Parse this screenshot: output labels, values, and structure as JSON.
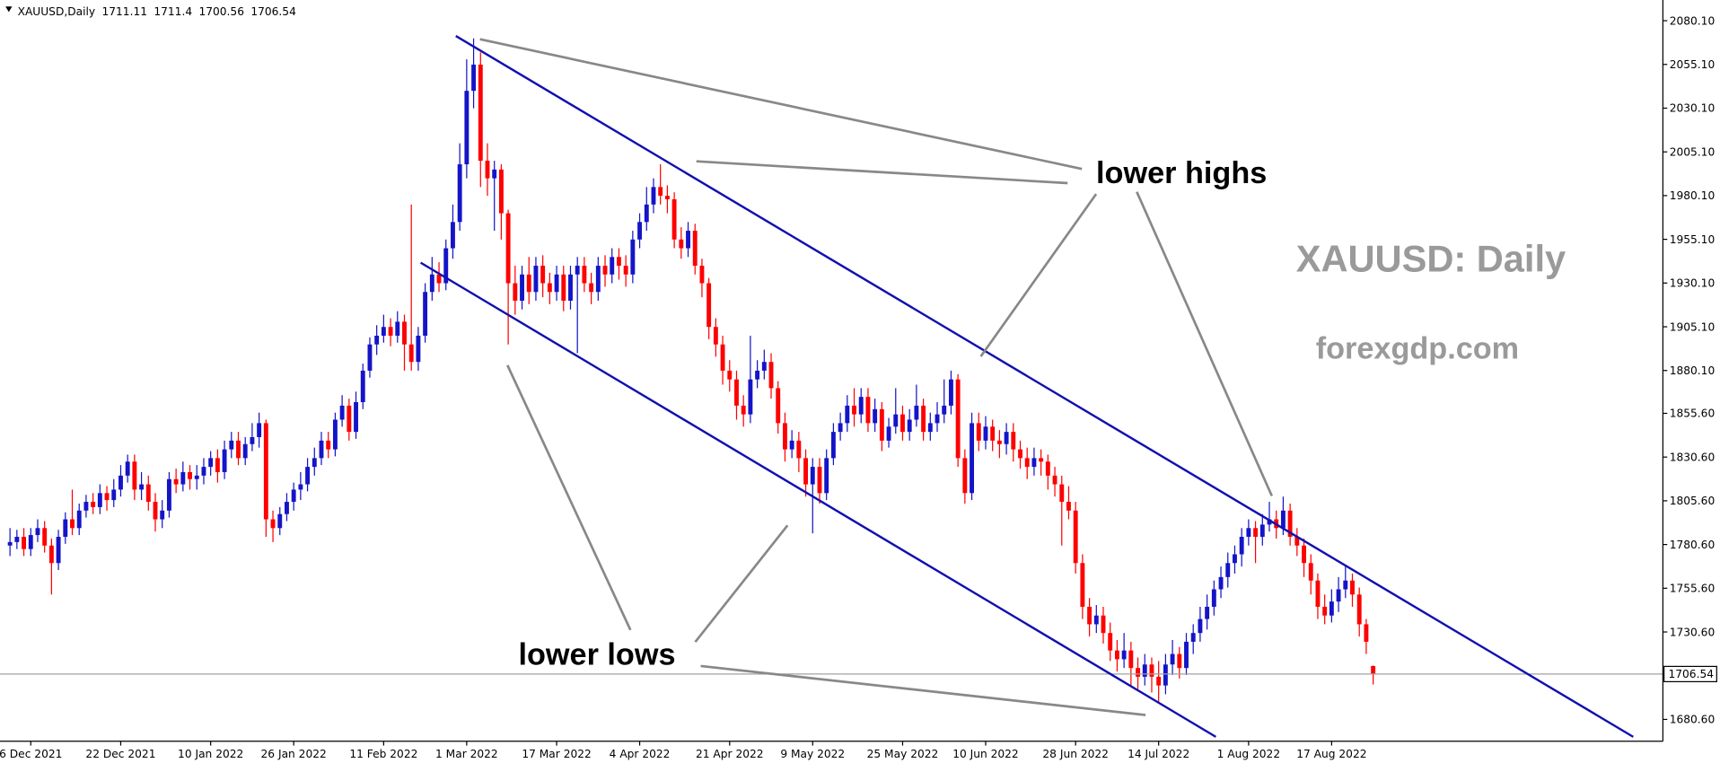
{
  "chart_data": {
    "type": "candlestick",
    "symbol": "XAUUSD,Daily",
    "annotations": [
      "lower highs",
      "lower lows",
      "XAUUSD: Daily",
      "forexgdp.com"
    ],
    "colors": {
      "up": "#1414c8",
      "down": "#ff0000",
      "channel": "#1010b0",
      "guide": "#888888"
    },
    "grid": false,
    "ylim": [
      1668.14,
      2091.94
    ],
    "yticks": [
      {
        "value": 2080.1,
        "label": "2080.10"
      },
      {
        "value": 2055.1,
        "label": "2055.10"
      },
      {
        "value": 2030.1,
        "label": "2030.10"
      },
      {
        "value": 2005.1,
        "label": "2005.10"
      },
      {
        "value": 1980.1,
        "label": "1980.10"
      },
      {
        "value": 1955.1,
        "label": "1955.10"
      },
      {
        "value": 1930.1,
        "label": "1930.10"
      },
      {
        "value": 1905.1,
        "label": "1905.10"
      },
      {
        "value": 1880.1,
        "label": "1880.10"
      },
      {
        "value": 1855.6,
        "label": "1855.60"
      },
      {
        "value": 1830.6,
        "label": "1830.60"
      },
      {
        "value": 1805.6,
        "label": "1805.60"
      },
      {
        "value": 1780.6,
        "label": "1780.60"
      },
      {
        "value": 1755.6,
        "label": "1755.60"
      },
      {
        "value": 1730.6,
        "label": "1730.60"
      },
      {
        "value": 1680.6,
        "label": "1680.60"
      }
    ],
    "categories": [
      null,
      null,
      null,
      "6 Dec 2021",
      null,
      null,
      null,
      null,
      null,
      null,
      null,
      null,
      null,
      null,
      null,
      null,
      "22 Dec 2021",
      null,
      null,
      null,
      null,
      null,
      null,
      null,
      null,
      null,
      null,
      null,
      null,
      "10 Jan 2022",
      null,
      null,
      null,
      null,
      null,
      null,
      null,
      null,
      null,
      null,
      null,
      "26 Jan 2022",
      null,
      null,
      null,
      null,
      null,
      null,
      null,
      null,
      null,
      null,
      null,
      null,
      "11 Feb 2022",
      null,
      null,
      null,
      null,
      null,
      null,
      null,
      null,
      null,
      null,
      null,
      "1 Mar 2022",
      null,
      null,
      null,
      null,
      null,
      null,
      null,
      null,
      null,
      null,
      null,
      null,
      "17 Mar 2022",
      null,
      null,
      null,
      null,
      null,
      null,
      null,
      null,
      null,
      null,
      null,
      "4 Apr 2022",
      null,
      null,
      null,
      null,
      null,
      null,
      null,
      null,
      null,
      null,
      null,
      null,
      "21 Apr 2022",
      null,
      null,
      null,
      null,
      null,
      null,
      null,
      null,
      null,
      null,
      null,
      "9 May 2022",
      null,
      null,
      null,
      null,
      null,
      null,
      null,
      null,
      null,
      null,
      null,
      null,
      "25 May 2022",
      null,
      null,
      null,
      null,
      null,
      null,
      null,
      null,
      null,
      null,
      null,
      "10 Jun 2022",
      null,
      null,
      null,
      null,
      null,
      null,
      null,
      null,
      null,
      null,
      null,
      null,
      "28 Jun 2022",
      null,
      null,
      null,
      null,
      null,
      null,
      null,
      null,
      null,
      null,
      null,
      "14 Jul 2022",
      null,
      null,
      null,
      null,
      null,
      null,
      null,
      null,
      null,
      null,
      null,
      null,
      "1 Aug 2022",
      null,
      null,
      null,
      null,
      null,
      null,
      null,
      null,
      null,
      null,
      null,
      "17 Aug 2022",
      null,
      null,
      null,
      null,
      null,
      null
    ],
    "ohlc": [
      [
        1780,
        1790,
        1774,
        1782
      ],
      [
        1782,
        1789,
        1778,
        1785
      ],
      [
        1785,
        1790,
        1774,
        1778
      ],
      [
        1778,
        1790,
        1774,
        1786
      ],
      [
        1786,
        1795,
        1782,
        1790
      ],
      [
        1790,
        1794,
        1776,
        1780
      ],
      [
        1780,
        1784,
        1752,
        1770
      ],
      [
        1770,
        1789,
        1766,
        1785
      ],
      [
        1785,
        1799,
        1781,
        1795
      ],
      [
        1795,
        1812,
        1786,
        1790
      ],
      [
        1790,
        1804,
        1786,
        1800
      ],
      [
        1800,
        1809,
        1796,
        1805
      ],
      [
        1805,
        1810,
        1798,
        1802
      ],
      [
        1802,
        1815,
        1798,
        1810
      ],
      [
        1810,
        1814,
        1800,
        1806
      ],
      [
        1806,
        1818,
        1802,
        1812
      ],
      [
        1812,
        1826,
        1808,
        1820
      ],
      [
        1820,
        1832,
        1816,
        1828
      ],
      [
        1828,
        1832,
        1806,
        1812
      ],
      [
        1812,
        1822,
        1806,
        1815
      ],
      [
        1815,
        1820,
        1800,
        1805
      ],
      [
        1805,
        1810,
        1788,
        1795
      ],
      [
        1795,
        1806,
        1790,
        1800
      ],
      [
        1800,
        1822,
        1796,
        1818
      ],
      [
        1818,
        1824,
        1810,
        1815
      ],
      [
        1815,
        1828,
        1811,
        1822
      ],
      [
        1822,
        1826,
        1812,
        1818
      ],
      [
        1818,
        1826,
        1812,
        1820
      ],
      [
        1820,
        1830,
        1815,
        1825
      ],
      [
        1825,
        1834,
        1820,
        1830
      ],
      [
        1830,
        1835,
        1816,
        1822
      ],
      [
        1822,
        1840,
        1818,
        1835
      ],
      [
        1835,
        1845,
        1830,
        1840
      ],
      [
        1840,
        1845,
        1826,
        1830
      ],
      [
        1830,
        1842,
        1826,
        1838
      ],
      [
        1838,
        1850,
        1834,
        1842
      ],
      [
        1842,
        1856,
        1836,
        1850
      ],
      [
        1850,
        1852,
        1785,
        1795
      ],
      [
        1795,
        1800,
        1782,
        1790
      ],
      [
        1790,
        1802,
        1786,
        1798
      ],
      [
        1798,
        1810,
        1794,
        1805
      ],
      [
        1805,
        1816,
        1800,
        1812
      ],
      [
        1812,
        1822,
        1806,
        1815
      ],
      [
        1815,
        1830,
        1811,
        1825
      ],
      [
        1825,
        1836,
        1820,
        1830
      ],
      [
        1830,
        1845,
        1826,
        1840
      ],
      [
        1840,
        1845,
        1830,
        1835
      ],
      [
        1835,
        1856,
        1831,
        1852
      ],
      [
        1852,
        1866,
        1848,
        1860
      ],
      [
        1860,
        1864,
        1840,
        1845
      ],
      [
        1845,
        1868,
        1841,
        1862
      ],
      [
        1862,
        1884,
        1858,
        1880
      ],
      [
        1880,
        1899,
        1876,
        1895
      ],
      [
        1895,
        1906,
        1889,
        1900
      ],
      [
        1900,
        1912,
        1896,
        1905
      ],
      [
        1905,
        1910,
        1894,
        1900
      ],
      [
        1900,
        1914,
        1896,
        1908
      ],
      [
        1908,
        1912,
        1880,
        1895
      ],
      [
        1895,
        1975,
        1880,
        1885
      ],
      [
        1885,
        1905,
        1880,
        1900
      ],
      [
        1900,
        1930,
        1896,
        1925
      ],
      [
        1925,
        1945,
        1920,
        1935
      ],
      [
        1935,
        1942,
        1925,
        1930
      ],
      [
        1930,
        1955,
        1926,
        1950
      ],
      [
        1950,
        1975,
        1944,
        1965
      ],
      [
        1965,
        2010,
        1960,
        1998
      ],
      [
        1998,
        2058,
        1990,
        2040
      ],
      [
        2040,
        2070,
        2030,
        2055
      ],
      [
        2055,
        2062,
        1985,
        2000
      ],
      [
        2000,
        2010,
        1980,
        1990
      ],
      [
        1990,
        2000,
        1960,
        1995
      ],
      [
        1995,
        1998,
        1955,
        1970
      ],
      [
        1970,
        1972,
        1895,
        1930
      ],
      [
        1930,
        1940,
        1912,
        1920
      ],
      [
        1920,
        1940,
        1915,
        1935
      ],
      [
        1935,
        1945,
        1918,
        1925
      ],
      [
        1925,
        1945,
        1920,
        1940
      ],
      [
        1940,
        1946,
        1922,
        1930
      ],
      [
        1930,
        1936,
        1918,
        1925
      ],
      [
        1925,
        1940,
        1920,
        1935
      ],
      [
        1935,
        1940,
        1914,
        1920
      ],
      [
        1920,
        1940,
        1915,
        1935
      ],
      [
        1935,
        1945,
        1890,
        1940
      ],
      [
        1940,
        1945,
        1925,
        1930
      ],
      [
        1930,
        1936,
        1918,
        1925
      ],
      [
        1925,
        1945,
        1920,
        1940
      ],
      [
        1940,
        1946,
        1928,
        1935
      ],
      [
        1935,
        1950,
        1930,
        1945
      ],
      [
        1945,
        1950,
        1932,
        1940
      ],
      [
        1940,
        1946,
        1928,
        1935
      ],
      [
        1935,
        1960,
        1930,
        1955
      ],
      [
        1955,
        1970,
        1950,
        1965
      ],
      [
        1965,
        1985,
        1960,
        1975
      ],
      [
        1975,
        1990,
        1970,
        1985
      ],
      [
        1985,
        1998,
        1975,
        1980
      ],
      [
        1980,
        1986,
        1970,
        1978
      ],
      [
        1978,
        1982,
        1950,
        1955
      ],
      [
        1955,
        1962,
        1944,
        1950
      ],
      [
        1950,
        1965,
        1945,
        1960
      ],
      [
        1960,
        1964,
        1935,
        1940
      ],
      [
        1940,
        1944,
        1922,
        1930
      ],
      [
        1930,
        1933,
        1898,
        1905
      ],
      [
        1905,
        1910,
        1888,
        1895
      ],
      [
        1895,
        1900,
        1872,
        1880
      ],
      [
        1880,
        1886,
        1868,
        1875
      ],
      [
        1875,
        1880,
        1852,
        1860
      ],
      [
        1860,
        1866,
        1848,
        1855
      ],
      [
        1855,
        1900,
        1850,
        1875
      ],
      [
        1875,
        1886,
        1870,
        1880
      ],
      [
        1880,
        1892,
        1875,
        1885
      ],
      [
        1885,
        1890,
        1864,
        1870
      ],
      [
        1870,
        1874,
        1844,
        1850
      ],
      [
        1850,
        1856,
        1828,
        1835
      ],
      [
        1835,
        1846,
        1830,
        1840
      ],
      [
        1840,
        1845,
        1822,
        1830
      ],
      [
        1830,
        1835,
        1808,
        1815
      ],
      [
        1815,
        1830,
        1787,
        1825
      ],
      [
        1825,
        1830,
        1804,
        1810
      ],
      [
        1810,
        1835,
        1806,
        1830
      ],
      [
        1830,
        1850,
        1826,
        1845
      ],
      [
        1845,
        1856,
        1840,
        1850
      ],
      [
        1850,
        1866,
        1845,
        1860
      ],
      [
        1860,
        1870,
        1848,
        1855
      ],
      [
        1855,
        1870,
        1850,
        1865
      ],
      [
        1865,
        1870,
        1845,
        1850
      ],
      [
        1850,
        1864,
        1845,
        1858
      ],
      [
        1858,
        1862,
        1834,
        1840
      ],
      [
        1840,
        1853,
        1836,
        1848
      ],
      [
        1848,
        1870,
        1844,
        1855
      ],
      [
        1855,
        1860,
        1840,
        1845
      ],
      [
        1845,
        1858,
        1840,
        1852
      ],
      [
        1852,
        1872,
        1848,
        1860
      ],
      [
        1860,
        1864,
        1840,
        1845
      ],
      [
        1845,
        1856,
        1840,
        1850
      ],
      [
        1850,
        1862,
        1845,
        1855
      ],
      [
        1855,
        1875,
        1850,
        1860
      ],
      [
        1860,
        1880,
        1855,
        1875
      ],
      [
        1875,
        1878,
        1825,
        1830
      ],
      [
        1830,
        1835,
        1804,
        1810
      ],
      [
        1810,
        1856,
        1806,
        1850
      ],
      [
        1850,
        1856,
        1834,
        1840
      ],
      [
        1840,
        1854,
        1835,
        1848
      ],
      [
        1848,
        1852,
        1834,
        1840
      ],
      [
        1840,
        1846,
        1830,
        1838
      ],
      [
        1838,
        1850,
        1832,
        1845
      ],
      [
        1845,
        1850,
        1828,
        1835
      ],
      [
        1835,
        1840,
        1824,
        1830
      ],
      [
        1830,
        1836,
        1818,
        1825
      ],
      [
        1825,
        1836,
        1820,
        1830
      ],
      [
        1830,
        1835,
        1820,
        1828
      ],
      [
        1828,
        1832,
        1812,
        1820
      ],
      [
        1820,
        1825,
        1808,
        1815
      ],
      [
        1815,
        1820,
        1780,
        1805
      ],
      [
        1805,
        1814,
        1795,
        1800
      ],
      [
        1800,
        1805,
        1764,
        1770
      ],
      [
        1770,
        1775,
        1738,
        1745
      ],
      [
        1745,
        1750,
        1728,
        1735
      ],
      [
        1735,
        1746,
        1730,
        1740
      ],
      [
        1740,
        1745,
        1724,
        1730
      ],
      [
        1730,
        1736,
        1714,
        1720
      ],
      [
        1720,
        1726,
        1708,
        1715
      ],
      [
        1715,
        1730,
        1710,
        1720
      ],
      [
        1720,
        1725,
        1700,
        1710
      ],
      [
        1710,
        1716,
        1698,
        1705
      ],
      [
        1705,
        1718,
        1700,
        1712
      ],
      [
        1712,
        1716,
        1696,
        1705
      ],
      [
        1705,
        1714,
        1690,
        1700
      ],
      [
        1700,
        1718,
        1695,
        1712
      ],
      [
        1712,
        1726,
        1706,
        1718
      ],
      [
        1718,
        1722,
        1704,
        1710
      ],
      [
        1710,
        1730,
        1706,
        1725
      ],
      [
        1725,
        1735,
        1718,
        1730
      ],
      [
        1730,
        1745,
        1725,
        1738
      ],
      [
        1738,
        1752,
        1732,
        1745
      ],
      [
        1745,
        1760,
        1740,
        1755
      ],
      [
        1755,
        1768,
        1750,
        1762
      ],
      [
        1762,
        1776,
        1756,
        1770
      ],
      [
        1770,
        1780,
        1764,
        1775
      ],
      [
        1775,
        1790,
        1768,
        1785
      ],
      [
        1785,
        1795,
        1780,
        1790
      ],
      [
        1790,
        1794,
        1770,
        1785
      ],
      [
        1785,
        1798,
        1780,
        1792
      ],
      [
        1792,
        1805,
        1788,
        1795
      ],
      [
        1795,
        1800,
        1784,
        1790
      ],
      [
        1790,
        1808,
        1786,
        1800
      ],
      [
        1800,
        1804,
        1780,
        1785
      ],
      [
        1785,
        1790,
        1774,
        1780
      ],
      [
        1780,
        1784,
        1762,
        1770
      ],
      [
        1770,
        1775,
        1752,
        1760
      ],
      [
        1760,
        1764,
        1738,
        1745
      ],
      [
        1745,
        1752,
        1735,
        1740
      ],
      [
        1740,
        1755,
        1736,
        1748
      ],
      [
        1748,
        1762,
        1742,
        1755
      ],
      [
        1755,
        1768,
        1750,
        1760
      ],
      [
        1760,
        1764,
        1745,
        1752
      ],
      [
        1752,
        1756,
        1728,
        1735
      ],
      [
        1735,
        1738,
        1718,
        1725
      ],
      [
        1711.11,
        1711.4,
        1700.56,
        1706.54
      ]
    ]
  }
}
